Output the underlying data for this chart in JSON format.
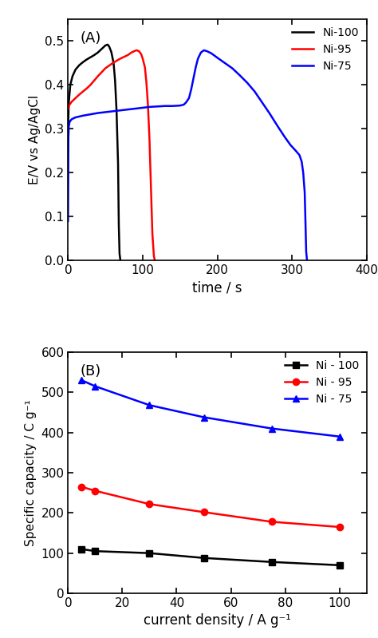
{
  "title_A": "(A)",
  "title_B": "(B)",
  "panel_A": {
    "xlabel": "time / s",
    "ylabel": "E/V vs Ag/AgCl",
    "xlim": [
      0,
      400
    ],
    "ylim": [
      0.0,
      0.55
    ],
    "xticks": [
      0,
      100,
      200,
      300,
      400
    ],
    "yticks": [
      0.0,
      0.1,
      0.2,
      0.3,
      0.4,
      0.5
    ],
    "legend": [
      "Ni-100",
      "Ni-95",
      "Ni-75"
    ],
    "colors": [
      "black",
      "red",
      "blue"
    ],
    "ni100": [
      [
        0,
        0.295
      ],
      [
        1,
        0.36
      ],
      [
        3,
        0.4
      ],
      [
        6,
        0.42
      ],
      [
        10,
        0.435
      ],
      [
        15,
        0.445
      ],
      [
        20,
        0.452
      ],
      [
        25,
        0.458
      ],
      [
        30,
        0.463
      ],
      [
        35,
        0.468
      ],
      [
        40,
        0.474
      ],
      [
        45,
        0.482
      ],
      [
        50,
        0.49
      ],
      [
        53,
        0.492
      ],
      [
        55,
        0.488
      ],
      [
        58,
        0.475
      ],
      [
        61,
        0.45
      ],
      [
        63,
        0.41
      ],
      [
        65,
        0.34
      ],
      [
        67,
        0.22
      ],
      [
        68,
        0.08
      ],
      [
        69,
        0.015
      ],
      [
        70,
        0.002
      ]
    ],
    "ni95": [
      [
        0,
        0.345
      ],
      [
        2,
        0.355
      ],
      [
        5,
        0.362
      ],
      [
        10,
        0.37
      ],
      [
        15,
        0.378
      ],
      [
        20,
        0.385
      ],
      [
        25,
        0.392
      ],
      [
        30,
        0.4
      ],
      [
        35,
        0.41
      ],
      [
        40,
        0.42
      ],
      [
        50,
        0.438
      ],
      [
        60,
        0.45
      ],
      [
        70,
        0.46
      ],
      [
        80,
        0.468
      ],
      [
        85,
        0.474
      ],
      [
        90,
        0.478
      ],
      [
        92,
        0.479
      ],
      [
        95,
        0.477
      ],
      [
        98,
        0.47
      ],
      [
        100,
        0.46
      ],
      [
        103,
        0.44
      ],
      [
        105,
        0.405
      ],
      [
        107,
        0.355
      ],
      [
        109,
        0.28
      ],
      [
        111,
        0.17
      ],
      [
        113,
        0.06
      ],
      [
        115,
        0.01
      ],
      [
        116,
        0.002
      ]
    ],
    "ni75": [
      [
        0,
        0.09
      ],
      [
        0.5,
        0.28
      ],
      [
        1,
        0.305
      ],
      [
        2,
        0.315
      ],
      [
        3,
        0.318
      ],
      [
        5,
        0.322
      ],
      [
        10,
        0.326
      ],
      [
        20,
        0.33
      ],
      [
        30,
        0.333
      ],
      [
        40,
        0.336
      ],
      [
        50,
        0.338
      ],
      [
        60,
        0.34
      ],
      [
        70,
        0.342
      ],
      [
        80,
        0.344
      ],
      [
        90,
        0.346
      ],
      [
        100,
        0.348
      ],
      [
        110,
        0.35
      ],
      [
        120,
        0.351
      ],
      [
        130,
        0.352
      ],
      [
        140,
        0.352
      ],
      [
        150,
        0.353
      ],
      [
        155,
        0.355
      ],
      [
        158,
        0.36
      ],
      [
        162,
        0.37
      ],
      [
        165,
        0.39
      ],
      [
        168,
        0.415
      ],
      [
        171,
        0.44
      ],
      [
        174,
        0.46
      ],
      [
        178,
        0.474
      ],
      [
        182,
        0.479
      ],
      [
        186,
        0.477
      ],
      [
        192,
        0.472
      ],
      [
        200,
        0.462
      ],
      [
        210,
        0.45
      ],
      [
        220,
        0.438
      ],
      [
        230,
        0.422
      ],
      [
        240,
        0.405
      ],
      [
        250,
        0.385
      ],
      [
        260,
        0.36
      ],
      [
        270,
        0.335
      ],
      [
        280,
        0.308
      ],
      [
        290,
        0.282
      ],
      [
        298,
        0.263
      ],
      [
        305,
        0.25
      ],
      [
        310,
        0.24
      ],
      [
        313,
        0.225
      ],
      [
        315,
        0.2
      ],
      [
        317,
        0.155
      ],
      [
        318,
        0.09
      ],
      [
        319,
        0.02
      ],
      [
        320,
        0.002
      ]
    ]
  },
  "panel_B": {
    "xlabel": "current density / A g⁻¹",
    "ylabel": "Specific capacity / C g⁻¹",
    "xlim": [
      0,
      110
    ],
    "ylim": [
      0,
      600
    ],
    "xticks": [
      0,
      20,
      40,
      60,
      80,
      100
    ],
    "yticks": [
      0,
      100,
      200,
      300,
      400,
      500,
      600
    ],
    "legend": [
      "Ni - 100",
      "Ni - 95",
      "Ni - 75"
    ],
    "colors": [
      "black",
      "red",
      "blue"
    ],
    "markers": [
      "s",
      "o",
      "^"
    ],
    "ni100_x": [
      5,
      10,
      30,
      50,
      75,
      100
    ],
    "ni100_y": [
      110,
      105,
      100,
      88,
      78,
      70
    ],
    "ni95_x": [
      5,
      10,
      30,
      50,
      75,
      100
    ],
    "ni95_y": [
      265,
      255,
      222,
      202,
      178,
      165
    ],
    "ni75_x": [
      5,
      10,
      30,
      50,
      75,
      100
    ],
    "ni75_y": [
      530,
      515,
      468,
      438,
      410,
      390
    ]
  }
}
